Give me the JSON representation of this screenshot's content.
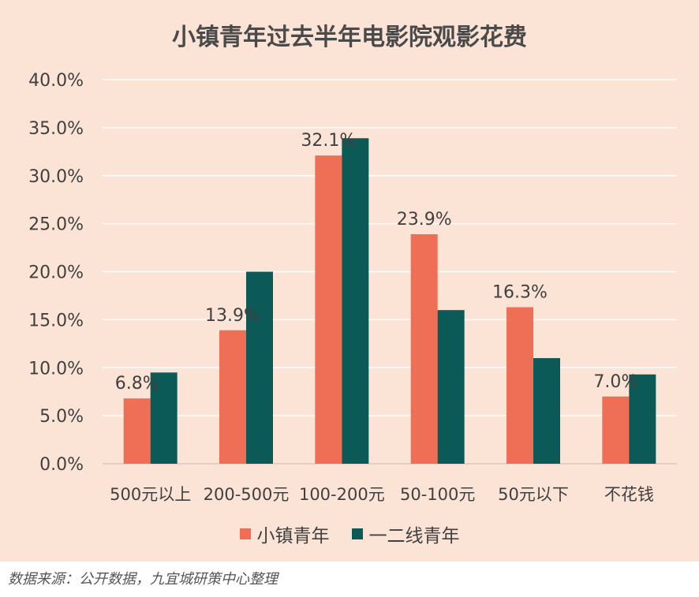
{
  "colors": {
    "background": "#fbe3d6",
    "small_town": "#ee6f56",
    "tier12": "#0c5a57",
    "grid": "#ffffff",
    "text": "#404040"
  },
  "title": "小镇青年过去半年电影院观影花费",
  "source": "数据来源：公开数据，九宜城研策中心整理",
  "legend": [
    {
      "label": "小镇青年"
    },
    {
      "label": "一二线青年"
    }
  ],
  "chart_data": {
    "type": "bar",
    "title": "小镇青年过去半年电影院观影花费",
    "xlabel": "",
    "ylabel": "",
    "categories": [
      "500元以上",
      "200-500元",
      "100-200元",
      "50-100元",
      "50元以下",
      "不花钱"
    ],
    "series": [
      {
        "name": "小镇青年",
        "values": [
          6.8,
          13.9,
          32.1,
          23.9,
          16.3,
          7.0
        ],
        "data_labels": [
          "6.8%",
          "13.9%",
          "32.1%",
          "23.9%",
          "16.3%",
          "7.0%"
        ]
      },
      {
        "name": "一二线青年",
        "values": [
          9.5,
          20.0,
          33.9,
          16.0,
          11.0,
          9.3
        ]
      }
    ],
    "ylim": [
      0,
      40
    ],
    "yticks": [
      0,
      5,
      10,
      15,
      20,
      25,
      30,
      35,
      40
    ],
    "ytick_labels": [
      "0.0%",
      "5.0%",
      "10.0%",
      "15.0%",
      "20.0%",
      "25.0%",
      "30.0%",
      "35.0%",
      "40.0%"
    ],
    "grid": true,
    "legend_position": "bottom"
  }
}
